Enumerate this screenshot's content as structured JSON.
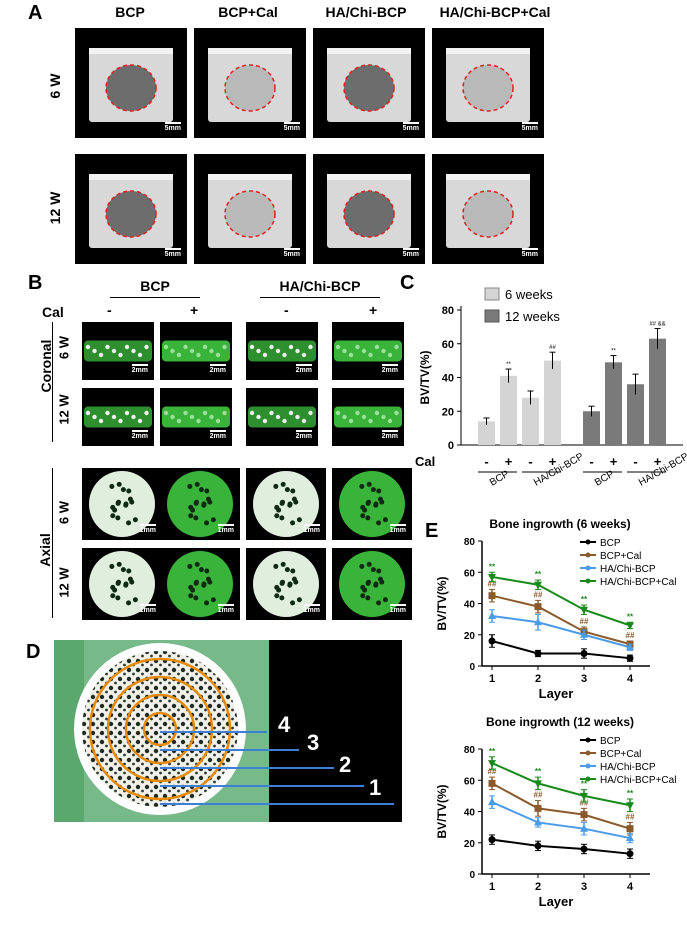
{
  "panels": {
    "A": "A",
    "B": "B",
    "C": "C",
    "D": "D",
    "E": "E"
  },
  "panelA": {
    "columns": [
      "BCP",
      "BCP+Cal",
      "HA/Chi-BCP",
      "HA/Chi-BCP+Cal"
    ],
    "rows": [
      "6 W",
      "12 W"
    ],
    "scale": "5mm"
  },
  "panelB": {
    "groups": [
      "BCP",
      "HA/Chi-BCP"
    ],
    "cal_label": "Cal",
    "signs": [
      "-",
      "+",
      "-",
      "+"
    ],
    "sections": [
      "Coronal",
      "Axial"
    ],
    "rows": [
      "6 W",
      "12 W"
    ],
    "scale_coronal": "2mm",
    "scale_axial": "1mm"
  },
  "panelD": {
    "layers": [
      "4",
      "3",
      "2",
      "1"
    ]
  },
  "colors": {
    "light_bar": "#d4d4d4",
    "dark_bar": "#7a7a7a",
    "bcp": "#000000",
    "bcp_cal": "#8b5a2b",
    "ha": "#4a9be8",
    "ha_cal": "#1a8a1a",
    "green_tissue": "#2ea82e"
  },
  "chart_data": [
    {
      "type": "bar",
      "panel": "C",
      "ylabel": "BV/TV(%)",
      "ylim": [
        0,
        80
      ],
      "yticks": [
        0,
        20,
        40,
        60,
        80
      ],
      "cal_label": "Cal",
      "signs": [
        "-",
        "+",
        "-",
        "+",
        "-",
        "+",
        "-",
        "+"
      ],
      "group_labels": [
        "BCP",
        "HA/Chi-BCP",
        "BCP",
        "HA/Chi-BCP"
      ],
      "legend": [
        "6 weeks",
        "12 weeks"
      ],
      "series": [
        {
          "name": "6 weeks",
          "values": [
            14,
            41,
            28,
            50
          ],
          "errors": [
            2,
            4,
            4,
            5
          ],
          "annotations": [
            "",
            "**",
            "",
            "##"
          ]
        },
        {
          "name": "12 weeks",
          "values": [
            20,
            49,
            36,
            63
          ],
          "errors": [
            3,
            4,
            6,
            6
          ],
          "annotations": [
            "",
            "**",
            "",
            "## &&"
          ]
        }
      ]
    },
    {
      "type": "line",
      "panel": "E-top",
      "title": "Bone ingrowth (6 weeks)",
      "xlabel": "Layer",
      "ylabel": "BV/TV(%)",
      "x": [
        1,
        2,
        3,
        4
      ],
      "ylim": [
        0,
        80
      ],
      "yticks": [
        0,
        20,
        40,
        60,
        80
      ],
      "series": [
        {
          "name": "BCP",
          "values": [
            16,
            8,
            8,
            5
          ],
          "errors": [
            4,
            2,
            3,
            2
          ],
          "annotations": [
            "",
            "",
            "",
            ""
          ]
        },
        {
          "name": "BCP+Cal",
          "values": [
            45,
            38,
            22,
            14
          ],
          "errors": [
            4,
            4,
            3,
            2
          ],
          "annotations": [
            "##",
            "##",
            "##",
            "##"
          ]
        },
        {
          "name": "HA/Chi-BCP",
          "values": [
            32,
            28,
            20,
            12
          ],
          "errors": [
            4,
            5,
            3,
            2
          ],
          "annotations": [
            "",
            "",
            "",
            ""
          ]
        },
        {
          "name": "HA/Chi-BCP+Cal",
          "values": [
            57,
            52,
            36,
            26
          ],
          "errors": [
            3,
            3,
            3,
            2
          ],
          "annotations": [
            "**",
            "**",
            "**",
            "**"
          ]
        }
      ]
    },
    {
      "type": "line",
      "panel": "E-bottom",
      "title": "Bone ingrowth (12 weeks)",
      "xlabel": "Layer",
      "ylabel": "BV/TV(%)",
      "x": [
        1,
        2,
        3,
        4
      ],
      "ylim": [
        0,
        80
      ],
      "yticks": [
        0,
        20,
        40,
        60,
        80
      ],
      "series": [
        {
          "name": "BCP",
          "values": [
            22,
            18,
            16,
            13
          ],
          "errors": [
            3,
            3,
            3,
            3
          ],
          "annotations": [
            "",
            "",
            "",
            ""
          ]
        },
        {
          "name": "BCP+Cal",
          "values": [
            58,
            42,
            38,
            29
          ],
          "errors": [
            4,
            5,
            4,
            4
          ],
          "annotations": [
            "##",
            "##",
            "##",
            "##"
          ]
        },
        {
          "name": "HA/Chi-BCP",
          "values": [
            46,
            33,
            29,
            23
          ],
          "errors": [
            4,
            3,
            4,
            3
          ],
          "annotations": [
            "",
            "",
            "",
            ""
          ]
        },
        {
          "name": "HA/Chi-BCP+Cal",
          "values": [
            71,
            58,
            50,
            44
          ],
          "errors": [
            4,
            4,
            4,
            4
          ],
          "annotations": [
            "**",
            "**",
            "**",
            "**"
          ]
        }
      ]
    }
  ]
}
